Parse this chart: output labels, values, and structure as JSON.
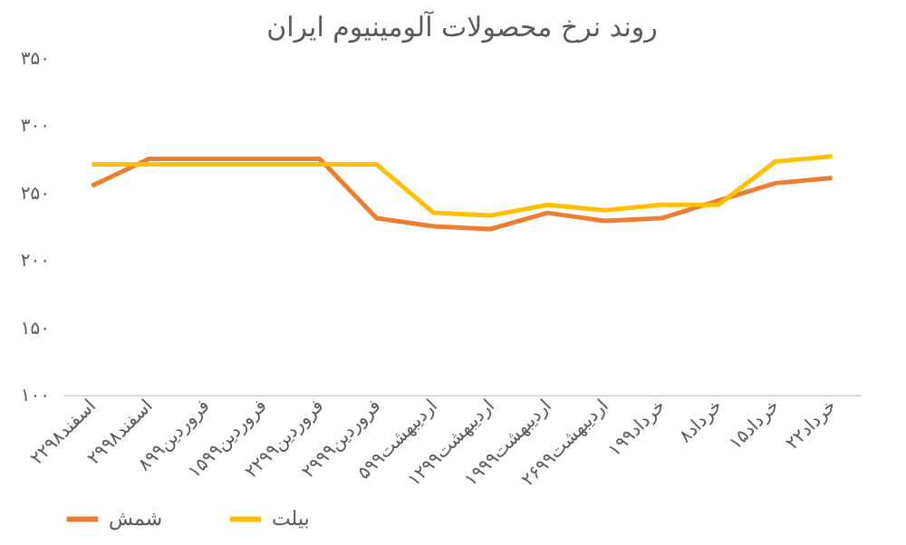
{
  "chart_data": {
    "type": "line",
    "title": "روند نرخ محصولات آلومینیوم ایران",
    "categories": [
      "۲۲اسفند۹۸",
      "۲۹اسفند۹۸",
      "۸فروردین۹۹",
      "۱۵فروردین۹۹",
      "۲۲فروردین۹۹",
      "۲۹فروردین۹۹",
      "۵اردیبهشت۹۹",
      "۱۲اردیبهشت۹۹",
      "۱۹اردیبهشت۹۹",
      "۲۶اردیبهشت۹۹",
      "۱خرداد۹۹",
      "۸خرداد",
      "۱۵خرداد",
      "۲۲خرداد"
    ],
    "series": [
      {
        "name": "شمش",
        "color": "#ed7d31",
        "values": [
          255,
          275,
          275,
          275,
          275,
          231,
          225,
          223,
          235,
          229,
          231,
          244,
          257,
          261
        ]
      },
      {
        "name": "بیلت",
        "color": "#ffc000",
        "values": [
          271,
          271,
          271,
          271,
          271,
          271,
          235,
          233,
          241,
          237,
          241,
          241,
          273,
          277
        ]
      }
    ],
    "ylim": [
      100,
      350
    ],
    "yticks": [
      {
        "value": 100,
        "label": "۱۰۰"
      },
      {
        "value": 150,
        "label": "۱۵۰"
      },
      {
        "value": 200,
        "label": "۲۰۰"
      },
      {
        "value": 250,
        "label": "۲۵۰"
      },
      {
        "value": 300,
        "label": "۳۰۰"
      },
      {
        "value": 350,
        "label": "۳۵۰"
      }
    ],
    "grid": false,
    "legend": "bottom",
    "marker": "none"
  }
}
